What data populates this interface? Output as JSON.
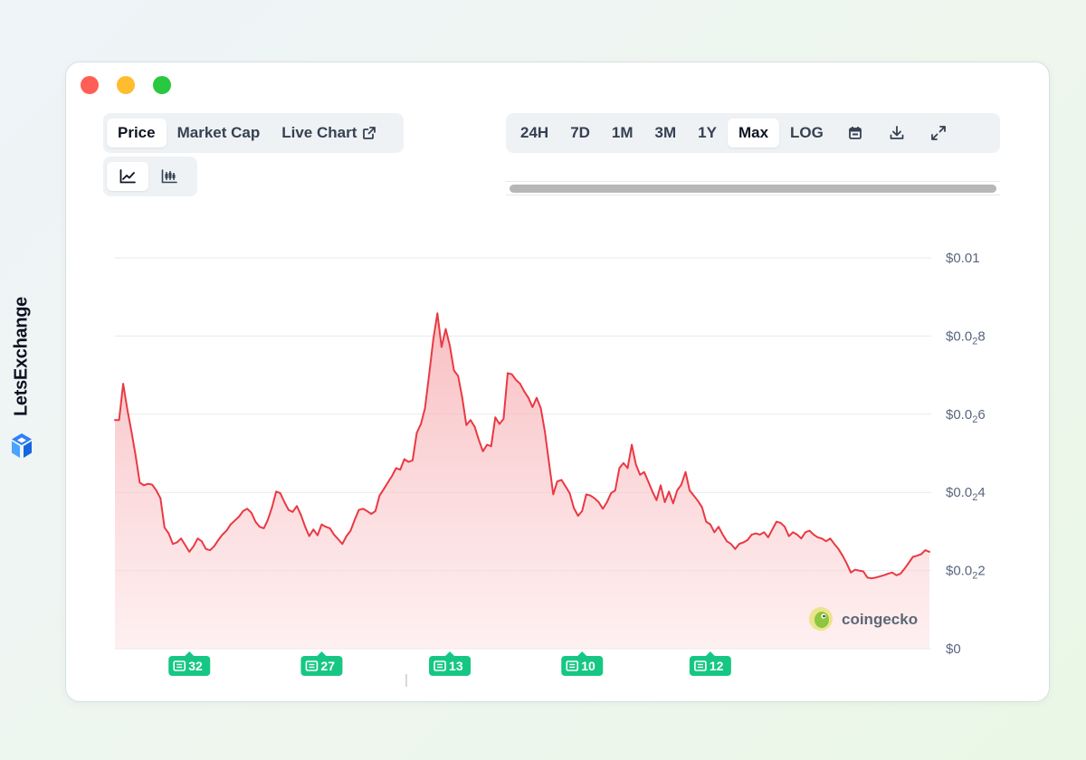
{
  "brand": {
    "name": "LetsExchange",
    "logo_icon": "letsexchange-logo-icon"
  },
  "window": {
    "controls": [
      {
        "name": "close",
        "color": "#ff5f57"
      },
      {
        "name": "minimize",
        "color": "#febc2e"
      },
      {
        "name": "maximize",
        "color": "#28c840"
      }
    ]
  },
  "metric_tabs": [
    {
      "label": "Price",
      "active": true
    },
    {
      "label": "Market Cap",
      "active": false
    },
    {
      "label": "Live Chart",
      "active": false,
      "icon": "external-link-icon"
    }
  ],
  "chart_style_toggle": [
    {
      "icon": "line-chart-icon",
      "active": true
    },
    {
      "icon": "candlestick-chart-icon",
      "active": false
    }
  ],
  "range_tabs": [
    {
      "label": "24H",
      "active": false
    },
    {
      "label": "7D",
      "active": false
    },
    {
      "label": "1M",
      "active": false
    },
    {
      "label": "3M",
      "active": false
    },
    {
      "label": "1Y",
      "active": false
    },
    {
      "label": "Max",
      "active": true
    },
    {
      "label": "LOG",
      "active": false
    }
  ],
  "tool_icons": [
    "calendar-icon",
    "download-icon",
    "expand-icon"
  ],
  "watermark": {
    "text": "coingecko",
    "icon": "coingecko-logo-icon"
  },
  "chart_data": {
    "type": "area",
    "line_color": "#ea3943",
    "y_ticks": [
      {
        "prefix": "$0",
        "sub": "",
        "suffix": ""
      },
      {
        "prefix": "$0.0",
        "sub": "2",
        "suffix": "2"
      },
      {
        "prefix": "$0.0",
        "sub": "2",
        "suffix": "4"
      },
      {
        "prefix": "$0.0",
        "sub": "2",
        "suffix": "6"
      },
      {
        "prefix": "$0.0",
        "sub": "2",
        "suffix": "8"
      },
      {
        "prefix": "$0.01",
        "sub": "",
        "suffix": ""
      }
    ],
    "ylim": [
      0,
      0.01
    ],
    "grid": true,
    "values": [
      0.00585,
      0.00585,
      0.00678,
      0.00612,
      0.00555,
      0.00495,
      0.00425,
      0.00418,
      0.00422,
      0.0042,
      0.00405,
      0.00385,
      0.0031,
      0.00295,
      0.00268,
      0.00272,
      0.00282,
      0.00265,
      0.00248,
      0.00262,
      0.00282,
      0.00275,
      0.00255,
      0.00252,
      0.00262,
      0.00278,
      0.00292,
      0.00302,
      0.00318,
      0.00328,
      0.00338,
      0.00352,
      0.00358,
      0.00348,
      0.00325,
      0.00312,
      0.00308,
      0.0033,
      0.00362,
      0.00402,
      0.00398,
      0.00375,
      0.00355,
      0.0035,
      0.00365,
      0.00342,
      0.00312,
      0.00288,
      0.00305,
      0.0029,
      0.00318,
      0.00312,
      0.00308,
      0.00292,
      0.0028,
      0.00268,
      0.00288,
      0.00302,
      0.0033,
      0.00355,
      0.00358,
      0.00352,
      0.00345,
      0.00352,
      0.00392,
      0.00408,
      0.00425,
      0.00442,
      0.00462,
      0.00458,
      0.00485,
      0.00478,
      0.00482,
      0.00552,
      0.00575,
      0.00615,
      0.00702,
      0.00792,
      0.00858,
      0.00772,
      0.00818,
      0.00775,
      0.00712,
      0.00698,
      0.00642,
      0.00572,
      0.00585,
      0.00568,
      0.00535,
      0.00505,
      0.00522,
      0.00518,
      0.00592,
      0.00575,
      0.00588,
      0.00705,
      0.00702,
      0.00688,
      0.00678,
      0.00658,
      0.00642,
      0.00618,
      0.00642,
      0.00615,
      0.00555,
      0.00475,
      0.00395,
      0.00428,
      0.00432,
      0.00415,
      0.00398,
      0.0036,
      0.0034,
      0.00352,
      0.00395,
      0.00392,
      0.00385,
      0.00375,
      0.00358,
      0.00375,
      0.00398,
      0.00405,
      0.00462,
      0.00475,
      0.00462,
      0.00522,
      0.00472,
      0.00445,
      0.00452,
      0.00428,
      0.00402,
      0.0038,
      0.00418,
      0.00375,
      0.00402,
      0.00372,
      0.00405,
      0.0042,
      0.00452,
      0.00405,
      0.00392,
      0.00378,
      0.00362,
      0.00325,
      0.00318,
      0.00298,
      0.00312,
      0.00292,
      0.00275,
      0.00268,
      0.00255,
      0.00268,
      0.00272,
      0.00278,
      0.00292,
      0.00295,
      0.00292,
      0.00298,
      0.00285,
      0.00305,
      0.00325,
      0.00322,
      0.00312,
      0.00288,
      0.00298,
      0.00292,
      0.00282,
      0.00298,
      0.00302,
      0.00292,
      0.00285,
      0.00282,
      0.00275,
      0.00282,
      0.00268,
      0.00255,
      0.00238,
      0.00218,
      0.00195,
      0.00202,
      0.002,
      0.00198,
      0.00182,
      0.0018,
      0.00182,
      0.00185,
      0.00188,
      0.00192,
      0.00195,
      0.00188,
      0.00192,
      0.00205,
      0.0022,
      0.00235,
      0.00238,
      0.00242,
      0.00252,
      0.00248
    ],
    "news_markers": [
      {
        "count": "32",
        "index": 18
      },
      {
        "count": "27",
        "index": 50
      },
      {
        "count": "13",
        "index": 81
      },
      {
        "count": "10",
        "index": 113
      },
      {
        "count": "12",
        "index": 144
      }
    ]
  }
}
